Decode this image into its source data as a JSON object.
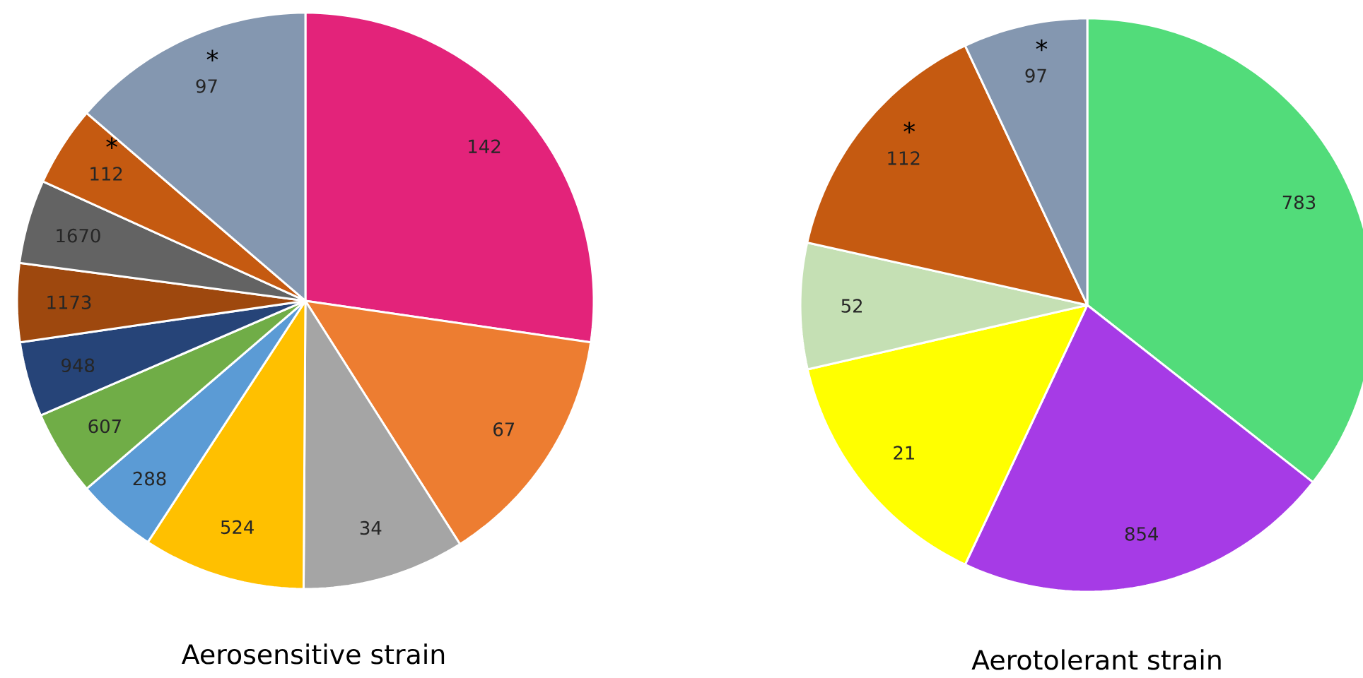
{
  "chart_data": [
    {
      "type": "pie",
      "title": "Aerosensitive strain",
      "categories": [
        "142",
        "67",
        "34",
        "524",
        "288",
        "607",
        "948",
        "1173",
        "1670",
        "112",
        "97"
      ],
      "values": [
        27.3,
        13.7,
        9.1,
        9.1,
        4.5,
        4.8,
        4.2,
        4.4,
        4.7,
        4.5,
        13.7
      ],
      "colors": [
        "#e3237a",
        "#ed7d31",
        "#a5a5a5",
        "#ffc000",
        "#5b9bd5",
        "#70ad47",
        "#264478",
        "#9e480e",
        "#636363",
        "#c55a11",
        "#8497b0"
      ],
      "annotations": [
        {
          "text": "*",
          "x": "112"
        },
        {
          "text": "*",
          "x": "97"
        }
      ]
    },
    {
      "type": "pie",
      "title": "Aerotolerant strain",
      "categories": [
        "783",
        "854",
        "21",
        "52",
        "112",
        "97"
      ],
      "values": [
        35.6,
        21.4,
        14.4,
        7.1,
        14.5,
        7.0
      ],
      "colors": [
        "#52dc7a",
        "#a63be6",
        "#ffff00",
        "#c5e0b4",
        "#c55a11",
        "#8497b0"
      ],
      "annotations": [
        {
          "text": "*",
          "x": "112"
        },
        {
          "text": "*",
          "x": "97"
        }
      ]
    }
  ]
}
